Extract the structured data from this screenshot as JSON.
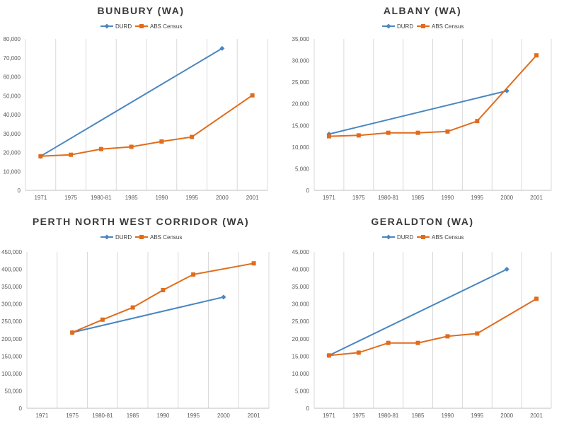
{
  "chart_data": [
    {
      "type": "line",
      "title": "BUNBURY (WA)",
      "categories": [
        "1971",
        "1975",
        "1980-81",
        "1985",
        "1990",
        "1995",
        "2000",
        "2001"
      ],
      "ylim": [
        0,
        80000
      ],
      "ytick_labels": [
        "0",
        "10,000",
        "20,000",
        "30,000",
        "40,000",
        "50,000",
        "60,000",
        "70,000",
        "80,000"
      ],
      "legend": "top-center",
      "series": [
        {
          "name": "DURD",
          "values": [
            18000,
            null,
            null,
            null,
            null,
            null,
            75000,
            null
          ]
        },
        {
          "name": "ABS Census",
          "values": [
            18000,
            18800,
            21800,
            23000,
            25800,
            28200,
            null,
            50200
          ]
        }
      ]
    },
    {
      "type": "line",
      "title": "ALBANY (WA)",
      "categories": [
        "1971",
        "1975",
        "1980-81",
        "1985",
        "1990",
        "1995",
        "2000",
        "2001"
      ],
      "ylim": [
        0,
        35000
      ],
      "ytick_labels": [
        "0",
        "5,000",
        "10,000",
        "15,000",
        "20,000",
        "25,000",
        "30,000",
        "35,000"
      ],
      "legend": "top-center",
      "series": [
        {
          "name": "DURD",
          "values": [
            13000,
            null,
            null,
            null,
            null,
            null,
            23000,
            null
          ]
        },
        {
          "name": "ABS Census",
          "values": [
            12500,
            12700,
            13300,
            13300,
            13600,
            16000,
            null,
            31200
          ]
        }
      ]
    },
    {
      "type": "line",
      "title": "PERTH NORTH WEST CORRIDOR (WA)",
      "categories": [
        "1971",
        "1975",
        "1980-81",
        "1985",
        "1990",
        "1995",
        "2000",
        "2001"
      ],
      "ylim": [
        0,
        450000
      ],
      "ytick_labels": [
        "0",
        "50,000",
        "100,000",
        "150,000",
        "200,000",
        "250,000",
        "300,000",
        "350,000",
        "400,000",
        "450,000"
      ],
      "legend": "top-center",
      "series": [
        {
          "name": "DURD",
          "values": [
            null,
            218000,
            null,
            null,
            null,
            null,
            320000,
            null
          ]
        },
        {
          "name": "ABS Census",
          "values": [
            null,
            218000,
            255000,
            290000,
            340000,
            385000,
            null,
            417000
          ]
        }
      ]
    },
    {
      "type": "line",
      "title": "GERALDTON (WA)",
      "categories": [
        "1971",
        "1975",
        "1980-81",
        "1985",
        "1990",
        "1995",
        "2000",
        "2001"
      ],
      "ylim": [
        0,
        45000
      ],
      "ytick_labels": [
        "0",
        "5,000",
        "10,000",
        "15,000",
        "20,000",
        "25,000",
        "30,000",
        "35,000",
        "40,000",
        "45,000"
      ],
      "legend": "top-center",
      "series": [
        {
          "name": "DURD",
          "values": [
            15200,
            null,
            null,
            null,
            null,
            null,
            40000,
            null
          ]
        },
        {
          "name": "ABS Census",
          "values": [
            15200,
            16000,
            18800,
            18800,
            20700,
            21500,
            null,
            31500
          ]
        }
      ]
    }
  ],
  "colors": {
    "DURD": "#4a86c0",
    "ABS Census": "#e06c1c",
    "grid": "#d9d9d9",
    "axis": "#bfbfbf"
  }
}
